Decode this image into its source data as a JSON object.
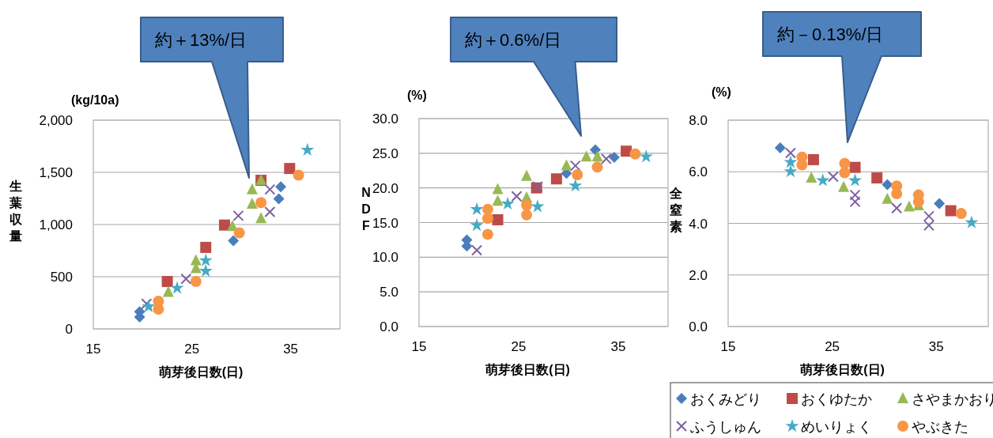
{
  "chart_data": [
    {
      "type": "scatter",
      "xlabel": "萌芽後日数(日)",
      "ylabel": "生葉収量",
      "xlim": [
        15,
        40
      ],
      "xticks": [
        15,
        25,
        35
      ],
      "ylim": [
        0,
        2000
      ],
      "yticks": [
        {
          "value": 0,
          "label": "0"
        },
        {
          "value": 500,
          "label": "500"
        },
        {
          "value": 1000,
          "label": "1,000"
        },
        {
          "value": 1500,
          "label": "1,500"
        },
        {
          "value": 2000,
          "label": "2,000"
        }
      ],
      "grid": "y",
      "legend": false,
      "annotations": [
        "(kg/10a)",
        "約＋13%/日"
      ],
      "series": [
        {
          "color": "#4a7ebb",
          "marker": "diamond",
          "x": [
            19.7,
            19.7,
            29.2,
            33.8,
            34.0
          ],
          "values": [
            164,
            113,
            844,
            1247,
            1361
          ]
        },
        {
          "color": "#be4b48",
          "marker": "square",
          "x": [
            22.5,
            26.4,
            28.3,
            32.0,
            34.9
          ],
          "values": [
            454,
            781,
            995,
            1424,
            1537
          ]
        },
        {
          "color": "#98b954",
          "marker": "triangle",
          "x": [
            22.6,
            25.4,
            25.4,
            29.1,
            31.1,
            31.1,
            32.0,
            32.0
          ],
          "values": [
            353,
            655,
            580,
            983,
            1336,
            1197,
            1424,
            1058
          ]
        },
        {
          "color": "#7d60a0",
          "marker": "cross",
          "x": [
            20.4,
            24.4,
            29.7,
            32.9,
            32.9
          ],
          "values": [
            240,
            479,
            1084,
            1336,
            1121
          ]
        },
        {
          "color": "#46aac5",
          "marker": "star",
          "x": [
            20.6,
            23.5,
            26.4,
            26.4,
            36.7
          ],
          "values": [
            214,
            391,
            655,
            554,
            1714
          ]
        },
        {
          "color": "#f79646",
          "marker": "circle",
          "x": [
            21.6,
            21.6,
            25.4,
            29.8,
            32.0,
            35.8
          ],
          "values": [
            189,
            265,
            454,
            920,
            1210,
            1474
          ]
        }
      ]
    },
    {
      "type": "scatter",
      "xlabel": "萌芽後日数(日)",
      "ylabel": "NDF",
      "xlim": [
        15,
        40
      ],
      "xticks": [
        15,
        25,
        35
      ],
      "ylim": [
        0,
        30
      ],
      "yticks": [
        {
          "value": 0,
          "label": "0.0"
        },
        {
          "value": 5,
          "label": "5.0"
        },
        {
          "value": 10,
          "label": "10.0"
        },
        {
          "value": 15,
          "label": "15.0"
        },
        {
          "value": 20,
          "label": "20.0"
        },
        {
          "value": 25,
          "label": "25.0"
        },
        {
          "value": 30,
          "label": "30.0"
        }
      ],
      "grid": "y",
      "legend": false,
      "annotations": [
        "(%)",
        "約＋0.6%/日"
      ],
      "series": [
        {
          "color": "#4a7ebb",
          "marker": "diamond",
          "x": [
            19.8,
            19.8,
            29.8,
            32.7,
            34.6
          ],
          "values": [
            12.5,
            11.6,
            22.1,
            25.5,
            24.4
          ]
        },
        {
          "color": "#be4b48",
          "marker": "square",
          "x": [
            22.9,
            26.8,
            28.8,
            35.8
          ],
          "values": [
            15.4,
            20.0,
            21.3,
            25.3
          ]
        },
        {
          "color": "#98b954",
          "marker": "triangle",
          "x": [
            22.9,
            22.9,
            25.8,
            25.8,
            29.8,
            31.8,
            32.9
          ],
          "values": [
            19.8,
            18.1,
            21.7,
            18.6,
            23.2,
            24.5,
            24.5
          ]
        },
        {
          "color": "#7d60a0",
          "marker": "cross",
          "x": [
            20.8,
            24.8,
            26.9,
            30.7,
            33.8
          ],
          "values": [
            11.0,
            18.8,
            20.2,
            23.2,
            24.2
          ]
        },
        {
          "color": "#46aac5",
          "marker": "star",
          "x": [
            20.8,
            20.8,
            23.9,
            26.9,
            30.7,
            37.8
          ],
          "values": [
            16.9,
            14.6,
            17.7,
            17.3,
            20.3,
            24.5
          ]
        },
        {
          "color": "#f79646",
          "marker": "circle",
          "x": [
            21.9,
            21.9,
            21.9,
            25.8,
            25.8,
            30.9,
            32.9,
            36.7
          ],
          "values": [
            16.9,
            15.6,
            13.3,
            17.5,
            16.1,
            21.9,
            23.0,
            24.9
          ]
        }
      ]
    },
    {
      "type": "scatter",
      "xlabel": "萌芽後日数(日)",
      "ylabel": "全窒素",
      "xlim": [
        15,
        40
      ],
      "xticks": [
        15,
        25,
        35
      ],
      "ylim": [
        0,
        8
      ],
      "yticks": [
        {
          "value": 0,
          "label": "0.0"
        },
        {
          "value": 2,
          "label": "2.0"
        },
        {
          "value": 4,
          "label": "4.0"
        },
        {
          "value": 6,
          "label": "6.0"
        },
        {
          "value": 8,
          "label": "8.0"
        }
      ],
      "grid": "y",
      "legend": "bottom",
      "annotations": [
        "(%)",
        "約－0.13%/日"
      ],
      "series": [
        {
          "name": "おくみどり",
          "color": "#4a7ebb",
          "marker": "diamond",
          "x": [
            20.0,
            30.3,
            35.3
          ],
          "values": [
            6.93,
            5.5,
            4.77
          ]
        },
        {
          "name": "おくゆたか",
          "color": "#be4b48",
          "marker": "square",
          "x": [
            23.2,
            27.2,
            29.3,
            36.4
          ],
          "values": [
            6.47,
            6.17,
            5.76,
            4.49
          ]
        },
        {
          "name": "さやまかおり",
          "color": "#98b954",
          "marker": "triangle",
          "x": [
            23.0,
            26.1,
            30.3,
            32.4,
            33.3
          ],
          "values": [
            5.76,
            5.4,
            4.94,
            4.64,
            4.69
          ]
        },
        {
          "name": "ふうしゅん",
          "color": "#7d60a0",
          "marker": "cross",
          "x": [
            21.0,
            25.1,
            27.2,
            27.2,
            31.2,
            34.3,
            34.3
          ],
          "values": [
            6.73,
            5.81,
            5.1,
            4.84,
            4.59,
            4.28,
            3.92
          ]
        },
        {
          "name": "めいりょく",
          "color": "#46aac5",
          "marker": "star",
          "x": [
            21.0,
            21.0,
            24.1,
            27.2,
            38.4
          ],
          "values": [
            6.37,
            6.01,
            5.66,
            5.66,
            4.03
          ]
        },
        {
          "name": "やぶきた",
          "color": "#f79646",
          "marker": "circle",
          "x": [
            22.1,
            22.1,
            26.2,
            26.2,
            31.2,
            31.2,
            33.3,
            33.3,
            37.4
          ],
          "values": [
            6.57,
            6.27,
            6.32,
            5.96,
            5.45,
            5.15,
            5.1,
            4.84,
            4.38
          ]
        }
      ]
    }
  ]
}
